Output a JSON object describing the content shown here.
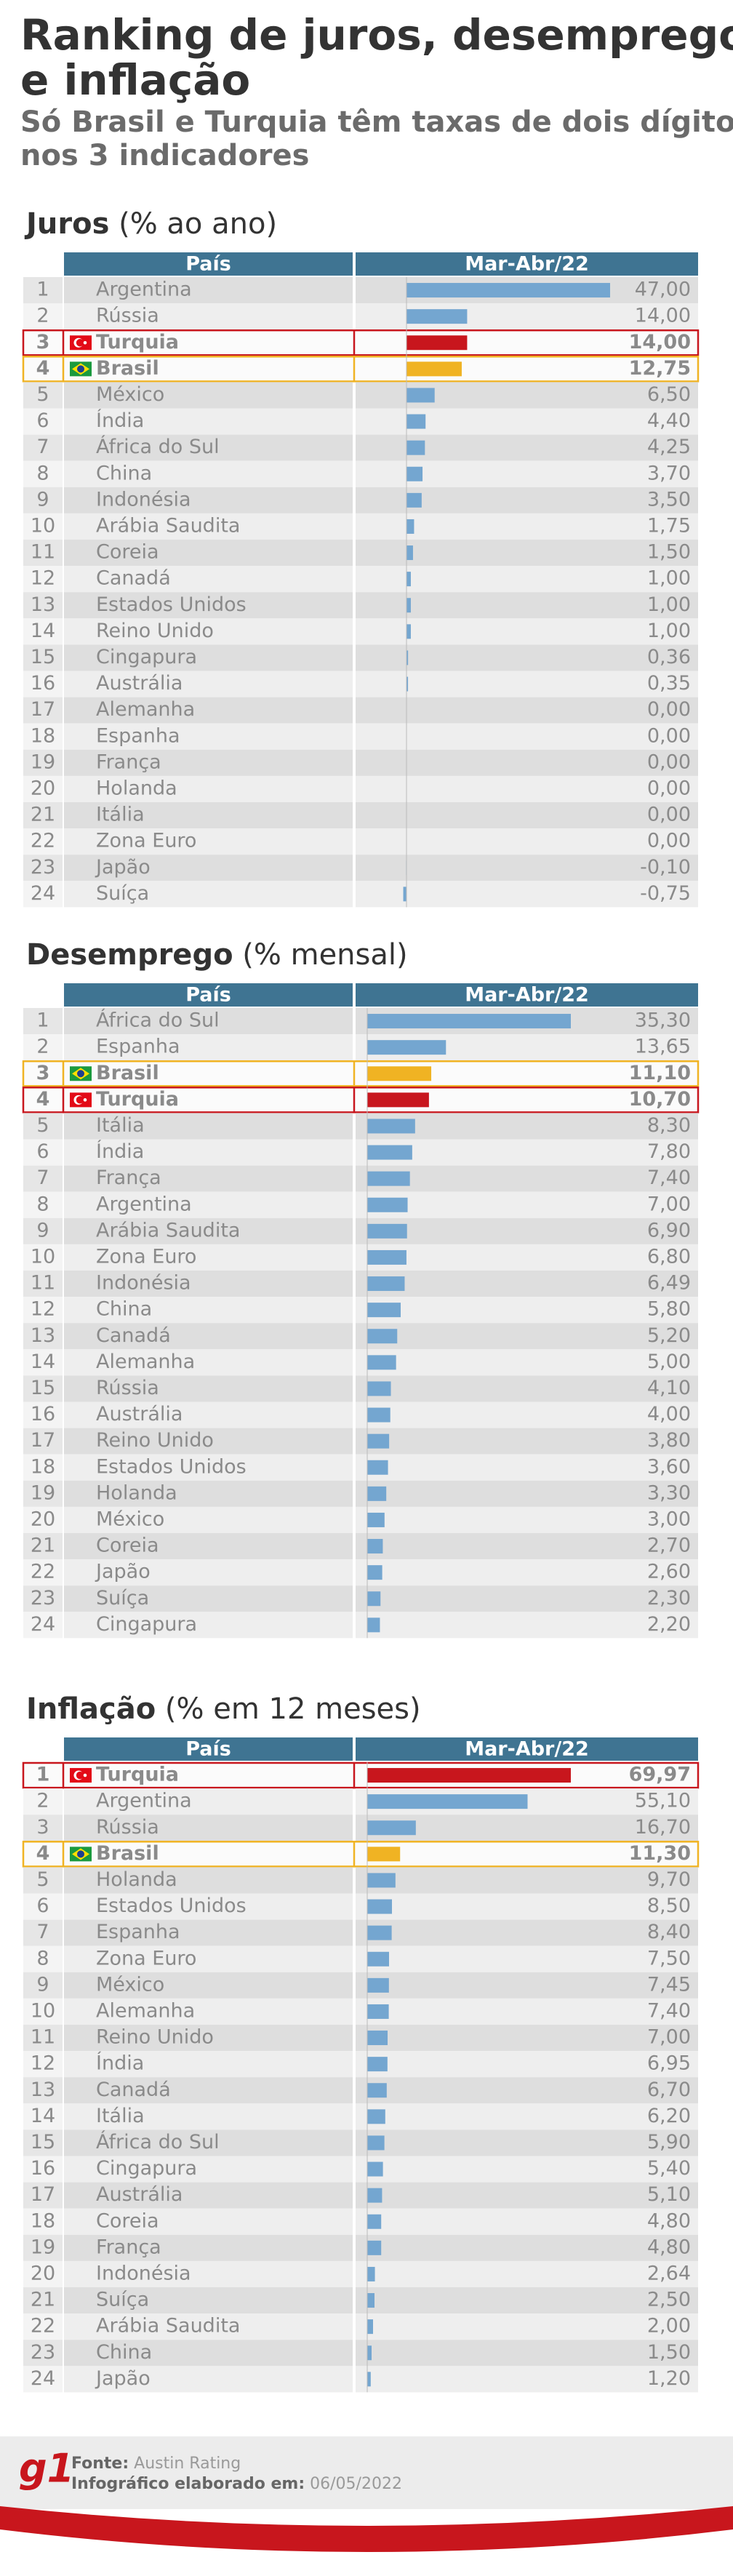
{
  "header": {
    "title": [
      "Ranking de juros, desemprego",
      "e inflação"
    ],
    "subtitle": [
      "Só Brasil e Turquia têm taxas de dois dígitos",
      "nos 3 indicadores"
    ]
  },
  "chart_data": [
    {
      "type": "bar",
      "title": "Juros",
      "subtitle": "(% ao ano)",
      "columns": [
        "País",
        "Mar-Abr/22"
      ],
      "ranks": [
        1,
        2,
        3,
        4,
        5,
        6,
        7,
        8,
        9,
        10,
        11,
        12,
        13,
        14,
        15,
        16,
        17,
        18,
        19,
        20,
        21,
        22,
        23,
        24
      ],
      "categories": [
        "Argentina",
        "Rússia",
        "Turquia",
        "Brasil",
        "México",
        "Índia",
        "África do Sul",
        "China",
        "Indonésia",
        "Arábia Saudita",
        "Coreia",
        "Canadá",
        "Estados Unidos",
        "Reino Unido",
        "Cingapura",
        "Austrália",
        "Alemanha",
        "Espanha",
        "França",
        "Holanda",
        "Itália",
        "Zona Euro",
        "Japão",
        "Suíça"
      ],
      "values": [
        47,
        14,
        14,
        12.75,
        6.5,
        4.4,
        4.25,
        3.7,
        3.5,
        1.75,
        1.5,
        1,
        1,
        1,
        0.36,
        0.35,
        0,
        0,
        0,
        0,
        0,
        0,
        -0.1,
        -0.75
      ],
      "value_labels": [
        "47,00",
        "14,00",
        "14,00",
        "12,75",
        "6,50",
        "4,40",
        "4,25",
        "3,70",
        "3,50",
        "1,75",
        "1,50",
        "1,00",
        "1,00",
        "1,00",
        "0,36",
        "0,35",
        "0,00",
        "0,00",
        "0,00",
        "0,00",
        "0,00",
        "0,00",
        "-0,10",
        "-0,75"
      ],
      "color": "#74a6d0",
      "highlight": {
        "Turquia": {
          "color": "#c8161d",
          "flag": "tr"
        },
        "Brasil": {
          "color": "#f0b323",
          "flag": "br"
        }
      }
    },
    {
      "type": "bar",
      "title": "Desemprego",
      "subtitle": "(% mensal)",
      "columns": [
        "País",
        "Mar-Abr/22"
      ],
      "ranks": [
        1,
        2,
        3,
        4,
        5,
        6,
        7,
        8,
        9,
        10,
        11,
        12,
        13,
        14,
        15,
        16,
        17,
        18,
        19,
        20,
        21,
        22,
        23,
        24
      ],
      "categories": [
        "África do Sul",
        "Espanha",
        "Brasil",
        "Turquia",
        "Itália",
        "Índia",
        "França",
        "Argentina",
        "Arábia Saudita",
        "Zona Euro",
        "Indonésia",
        "China",
        "Canadá",
        "Alemanha",
        "Rússia",
        "Austrália",
        "Reino Unido",
        "Estados Unidos",
        "Holanda",
        "México",
        "Coreia",
        "Japão",
        "Suíça",
        "Cingapura"
      ],
      "values": [
        35.3,
        13.65,
        11.1,
        10.7,
        8.3,
        7.8,
        7.4,
        7,
        6.9,
        6.8,
        6.49,
        5.8,
        5.2,
        5,
        4.1,
        4,
        3.8,
        3.6,
        3.3,
        3,
        2.7,
        2.6,
        2.3,
        2.2
      ],
      "value_labels": [
        "35,30",
        "13,65",
        "11,10",
        "10,70",
        "8,30",
        "7,80",
        "7,40",
        "7,00",
        "6,90",
        "6,80",
        "6,49",
        "5,80",
        "5,20",
        "5,00",
        "4,10",
        "4,00",
        "3,80",
        "3,60",
        "3,30",
        "3,00",
        "2,70",
        "2,60",
        "2,30",
        "2,20"
      ],
      "color": "#74a6d0",
      "highlight": {
        "Turquia": {
          "color": "#c8161d",
          "flag": "tr"
        },
        "Brasil": {
          "color": "#f0b323",
          "flag": "br"
        }
      }
    },
    {
      "type": "bar",
      "title": "Inflação",
      "subtitle": "(% em 12 meses)",
      "columns": [
        "País",
        "Mar-Abr/22"
      ],
      "ranks": [
        1,
        2,
        3,
        4,
        5,
        6,
        7,
        8,
        9,
        10,
        11,
        12,
        13,
        14,
        15,
        16,
        17,
        18,
        19,
        20,
        21,
        22,
        23,
        24
      ],
      "categories": [
        "Turquia",
        "Argentina",
        "Rússia",
        "Brasil",
        "Holanda",
        "Estados Unidos",
        "Espanha",
        "Zona Euro",
        "México",
        "Alemanha",
        "Reino Unido",
        "Índia",
        "Canadá",
        "Itália",
        "África do Sul",
        "Cingapura",
        "Austrália",
        "Coreia",
        "França",
        "Indonésia",
        "Suíça",
        "Arábia Saudita",
        "China",
        "Japão"
      ],
      "values": [
        69.97,
        55.1,
        16.7,
        11.3,
        9.7,
        8.5,
        8.4,
        7.5,
        7.45,
        7.4,
        7,
        6.95,
        6.7,
        6.2,
        5.9,
        5.4,
        5.1,
        4.8,
        4.8,
        2.64,
        2.5,
        2,
        1.5,
        1.2
      ],
      "value_labels": [
        "69,97",
        "55,10",
        "16,70",
        "11,30",
        "9,70",
        "8,50",
        "8,40",
        "7,50",
        "7,45",
        "7,40",
        "7,00",
        "6,95",
        "6,70",
        "6,20",
        "5,90",
        "5,40",
        "5,10",
        "4,80",
        "4,80",
        "2,64",
        "2,50",
        "2,00",
        "1,50",
        "1,20"
      ],
      "color": "#74a6d0",
      "highlight": {
        "Turquia": {
          "color": "#c8161d",
          "flag": "tr"
        },
        "Brasil": {
          "color": "#f0b323",
          "flag": "br"
        }
      }
    }
  ],
  "footer": {
    "logo": "g1",
    "source_label": "Fonte:",
    "source": "Austin Rating",
    "date_label": "Infográfico elaborado em:",
    "date": "06/05/2022"
  }
}
